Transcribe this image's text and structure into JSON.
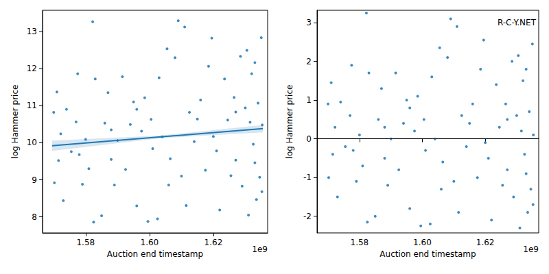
{
  "chart_data": [
    {
      "type": "scatter",
      "xlabel": "Auction end timestamp",
      "ylabel": "log Hammer price",
      "offset_text": "1e9",
      "color": "#1f77b4",
      "xlim": [
        1566500000,
        1637000000
      ],
      "xticks": [
        {
          "value": 1580000000,
          "label": "1.58"
        },
        {
          "value": 1600000000,
          "label": "1.60"
        },
        {
          "value": 1620000000,
          "label": "1.62"
        }
      ],
      "ylim": [
        7.57,
        13.57
      ],
      "yticks": [
        8,
        9,
        10,
        11,
        12,
        13
      ],
      "x": [
        1570000000,
        1570200000,
        1571000000,
        1571500000,
        1572200000,
        1573000000,
        1574000000,
        1575500000,
        1577000000,
        1577500000,
        1579000000,
        1580000000,
        1581000000,
        1582200000,
        1582500000,
        1583000000,
        1585000000,
        1586000000,
        1587000000,
        1588000000,
        1589000000,
        1590000000,
        1591500000,
        1592500000,
        1594000000,
        1595000000,
        1596000000,
        1597500000,
        1598500000,
        1599500000,
        1600500000,
        1601000000,
        1602500000,
        1603000000,
        1604000000,
        1605500000,
        1606500000,
        1608000000,
        1609000000,
        1610000000,
        1611000000,
        1611500000,
        1612500000,
        1614000000,
        1616000000,
        1617500000,
        1618500000,
        1619500000,
        1621000000,
        1622000000,
        1623500000,
        1624500000,
        1625500000,
        1626500000,
        1627000000,
        1628500000,
        1629000000,
        1630000000,
        1630500000,
        1631000000,
        1631500000,
        1632000000,
        1632500000,
        1633000000,
        1633500000,
        1634000000,
        1634500000,
        1635000000,
        1635200000,
        1635300000,
        1596000000,
        1588000000,
        1615000000,
        1620000000,
        1606000000,
        1578000000,
        1627000000,
        1633000000
      ],
      "values": [
        10.82,
        8.92,
        11.37,
        9.52,
        10.24,
        8.44,
        10.9,
        9.76,
        10.56,
        11.86,
        8.88,
        10.09,
        9.3,
        13.26,
        7.86,
        11.72,
        8.03,
        10.53,
        11.35,
        9.55,
        8.86,
        10.06,
        11.78,
        9.28,
        10.49,
        11.1,
        8.3,
        10.31,
        11.21,
        7.88,
        10.63,
        9.84,
        7.95,
        11.75,
        10.16,
        12.53,
        9.57,
        12.29,
        13.29,
        9.1,
        13.12,
        8.31,
        10.82,
        10.03,
        11.15,
        9.26,
        12.06,
        12.82,
        9.78,
        8.19,
        11.72,
        10.61,
        9.11,
        11.22,
        9.53,
        12.33,
        8.83,
        10.94,
        12.49,
        8.05,
        10.55,
        11.86,
        9.96,
        12.16,
        8.47,
        11.07,
        9.07,
        12.83,
        8.68,
        10.48,
        10.9,
        10.35,
        10.64,
        10.17,
        8.86,
        9.68,
        10.83,
        9.46
      ],
      "regression": {
        "x": [
          1569500000,
          1635500000
        ],
        "values": [
          9.92,
          10.38
        ]
      },
      "ci": {
        "x": [
          1569500000,
          1603000000,
          1635500000
        ],
        "lower": [
          9.78,
          10.12,
          10.28
        ],
        "upper": [
          10.06,
          10.19,
          10.48
        ]
      }
    },
    {
      "type": "scatter",
      "xlabel": "Auction end timestamp",
      "ylabel": "log Hammer price",
      "offset_text": "1e9",
      "annotation": "R-C-Y.NET",
      "color": "#1f77b4",
      "xlim": [
        1566500000,
        1637000000
      ],
      "xticks": [
        {
          "value": 1580000000,
          "label": "1.58"
        },
        {
          "value": 1600000000,
          "label": "1.60"
        },
        {
          "value": 1620000000,
          "label": "1.62"
        }
      ],
      "ylim": [
        -2.43,
        3.32
      ],
      "yticks": [
        -2,
        -1,
        0,
        1,
        2,
        3
      ],
      "hline": 0,
      "x": [
        1570000000,
        1570200000,
        1571000000,
        1571500000,
        1572200000,
        1573000000,
        1574000000,
        1575500000,
        1577000000,
        1577500000,
        1579000000,
        1580000000,
        1581000000,
        1582200000,
        1582500000,
        1583000000,
        1585000000,
        1586000000,
        1587000000,
        1588000000,
        1589000000,
        1590000000,
        1591500000,
        1592500000,
        1594000000,
        1595000000,
        1596000000,
        1597500000,
        1598500000,
        1599500000,
        1600500000,
        1601000000,
        1602500000,
        1603000000,
        1604000000,
        1605500000,
        1606500000,
        1608000000,
        1609000000,
        1610000000,
        1611000000,
        1611500000,
        1612500000,
        1614000000,
        1616000000,
        1617500000,
        1618500000,
        1619500000,
        1621000000,
        1622000000,
        1623500000,
        1624500000,
        1625500000,
        1626500000,
        1627000000,
        1628500000,
        1629000000,
        1630000000,
        1630500000,
        1631000000,
        1631500000,
        1632000000,
        1632500000,
        1633000000,
        1633500000,
        1634000000,
        1634500000,
        1635000000,
        1635200000,
        1635300000,
        1596000000,
        1588000000,
        1615000000,
        1620000000,
        1606000000,
        1578000000,
        1627000000,
        1633000000
      ],
      "values": [
        0.9,
        -1.0,
        1.45,
        -0.4,
        0.3,
        -1.5,
        0.95,
        -0.2,
        0.6,
        1.9,
        -1.1,
        0.1,
        -0.7,
        3.25,
        -2.15,
        1.7,
        -2.0,
        0.5,
        1.3,
        -0.5,
        -1.2,
        0.0,
        1.7,
        -0.8,
        0.4,
        1.0,
        -1.8,
        0.2,
        1.1,
        -2.25,
        0.5,
        -0.3,
        -2.2,
        1.6,
        0.0,
        2.35,
        -0.6,
        2.1,
        3.1,
        -1.1,
        2.9,
        -1.9,
        0.6,
        -0.2,
        0.9,
        -1.0,
        1.8,
        2.55,
        -0.5,
        -2.1,
        1.4,
        0.3,
        -1.2,
        0.9,
        -0.8,
        2.0,
        -1.5,
        0.6,
        2.15,
        -2.3,
        0.2,
        1.5,
        -0.4,
        1.8,
        -1.9,
        0.7,
        -1.3,
        2.45,
        -1.7,
        0.1,
        0.8,
        0.3,
        0.4,
        -0.1,
        -1.3,
        -0.3,
        0.5,
        -0.9
      ]
    }
  ]
}
